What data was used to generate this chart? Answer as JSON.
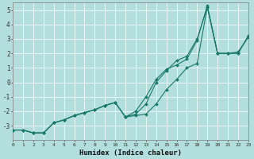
{
  "title": "",
  "xlabel": "Humidex (Indice chaleur)",
  "background_color": "#b2dede",
  "grid_color": "#ffffff",
  "line_color": "#1a7a6a",
  "x_values": [
    0,
    1,
    2,
    3,
    4,
    5,
    6,
    7,
    8,
    9,
    10,
    11,
    12,
    13,
    14,
    15,
    16,
    17,
    18,
    19,
    20,
    21,
    22,
    23
  ],
  "series1": [
    -3.3,
    -3.3,
    -3.5,
    -3.5,
    -2.8,
    -2.6,
    -2.3,
    -2.1,
    -1.9,
    -1.6,
    -1.4,
    -2.4,
    -2.3,
    -2.2,
    -1.5,
    -0.5,
    0.2,
    1.0,
    1.3,
    5.2,
    2.0,
    2.0,
    2.0,
    3.2
  ],
  "series2": [
    -3.3,
    -3.3,
    -3.5,
    -3.5,
    -2.8,
    -2.6,
    -2.3,
    -2.1,
    -1.9,
    -1.6,
    -1.4,
    -2.4,
    -2.2,
    -1.5,
    0.0,
    0.8,
    1.5,
    1.8,
    3.0,
    5.2,
    2.0,
    2.0,
    2.0,
    3.2
  ],
  "series3": [
    -3.3,
    -3.3,
    -3.5,
    -3.5,
    -2.8,
    -2.6,
    -2.3,
    -2.1,
    -1.9,
    -1.6,
    -1.4,
    -2.4,
    -2.0,
    -1.0,
    0.2,
    0.9,
    1.2,
    1.6,
    2.9,
    5.3,
    2.0,
    2.0,
    2.1,
    3.1
  ],
  "xlim": [
    0,
    23
  ],
  "ylim": [
    -4.0,
    5.5
  ],
  "yticks": [
    -3,
    -2,
    -1,
    0,
    1,
    2,
    3,
    4,
    5
  ],
  "xticks": [
    0,
    1,
    2,
    3,
    4,
    5,
    6,
    7,
    8,
    9,
    10,
    11,
    12,
    13,
    14,
    15,
    16,
    17,
    18,
    19,
    20,
    21,
    22,
    23
  ]
}
